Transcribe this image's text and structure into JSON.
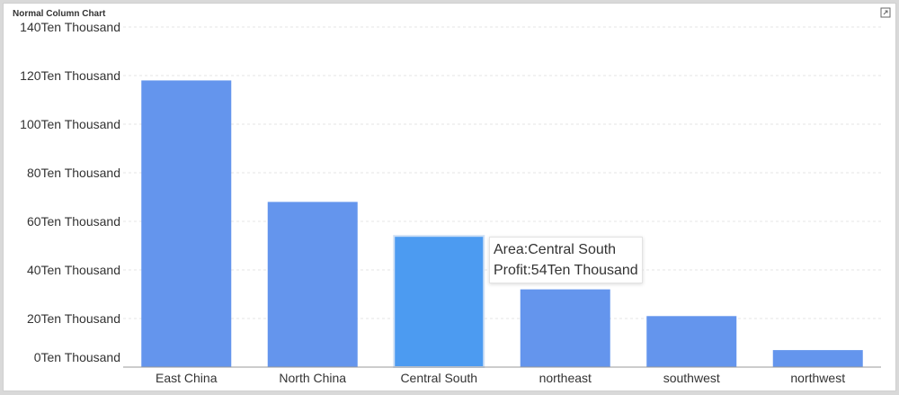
{
  "panel": {
    "title": "Normal Column Chart"
  },
  "icons": {
    "expand": "expand-icon"
  },
  "colors": {
    "bar": "#6495ED",
    "bar_highlight": "#4C9BF1",
    "grid": "#e6e6e6"
  },
  "tooltip": {
    "area_line": "Area:Central South",
    "profit_line": "Profit:54Ten Thousand"
  },
  "chart_data": {
    "type": "bar",
    "title": "Normal Column Chart",
    "categories": [
      "East China",
      "North China",
      "Central South",
      "northeast",
      "southwest",
      "northwest"
    ],
    "series": [
      {
        "values": [
          118,
          68,
          54,
          32,
          21,
          7
        ]
      }
    ],
    "ylim": [
      0,
      140
    ],
    "yticks": [
      0,
      20,
      40,
      60,
      80,
      100,
      120,
      140
    ],
    "ytick_labels": [
      "0Ten Thousand",
      "20Ten Thousand",
      "40Ten Thousand",
      "60Ten Thousand",
      "80Ten Thousand",
      "100Ten Thousand",
      "120Ten Thousand",
      "140Ten Thousand"
    ],
    "grid": true,
    "highlighted_category": "Central South",
    "xlabel": "",
    "ylabel": ""
  }
}
